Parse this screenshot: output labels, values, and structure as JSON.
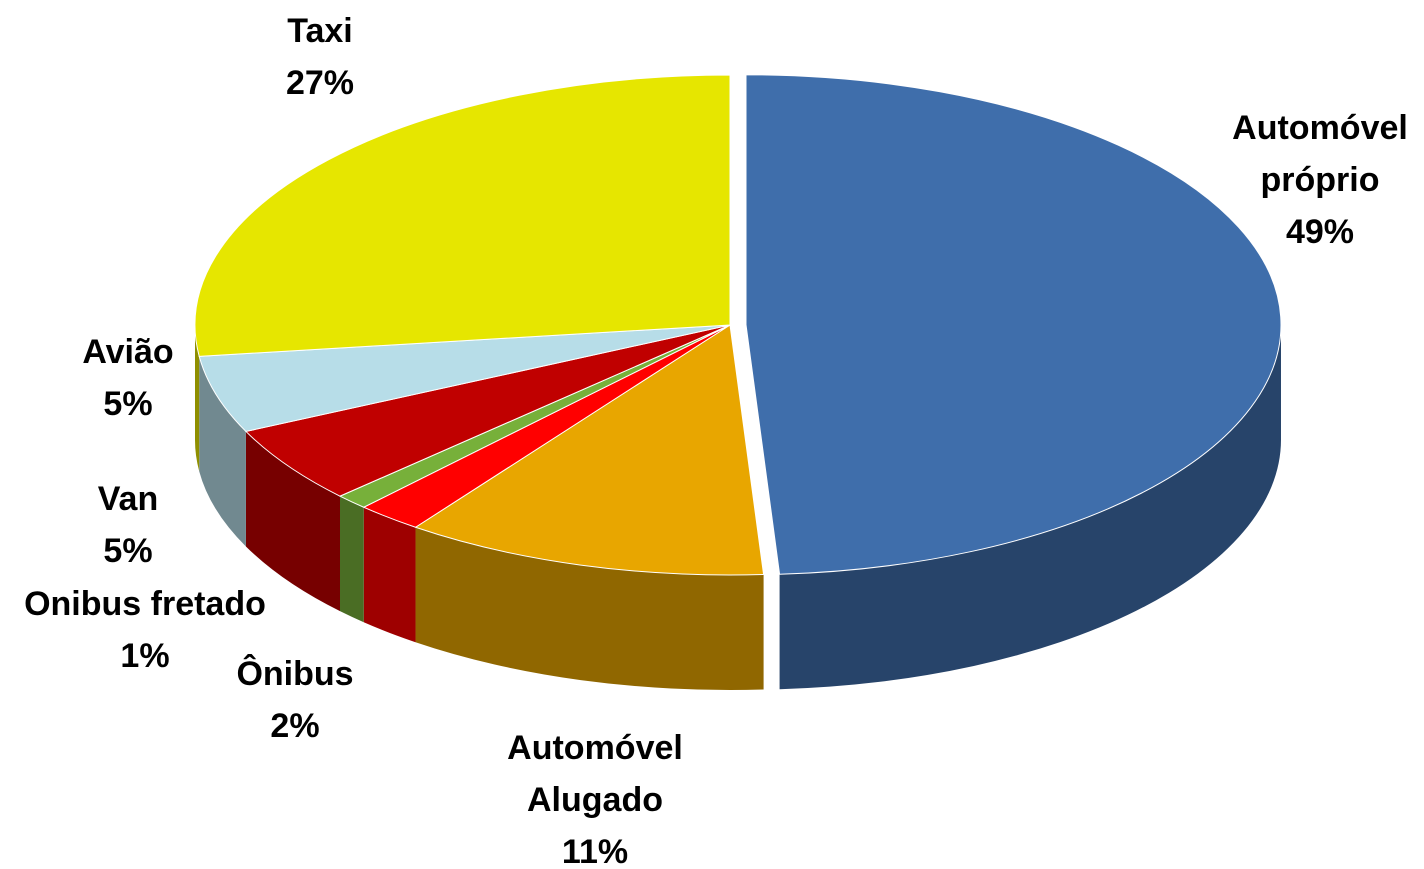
{
  "chart_data": {
    "type": "pie",
    "categories": [
      "Automóvel próprio",
      "Automóvel Alugado",
      "Ônibus",
      "Onibus fretado",
      "Van",
      "Avião",
      "Taxi"
    ],
    "values": [
      49,
      11,
      2,
      1,
      5,
      5,
      27
    ],
    "value_labels": [
      "49%",
      "11%",
      "2%",
      "1%",
      "5%",
      "5%",
      "27%"
    ],
    "colors": [
      "#3f6eab",
      "#e8a600",
      "#ff0000",
      "#77b03a",
      "#c00000",
      "#b7dde8",
      "#e6e600"
    ]
  }
}
